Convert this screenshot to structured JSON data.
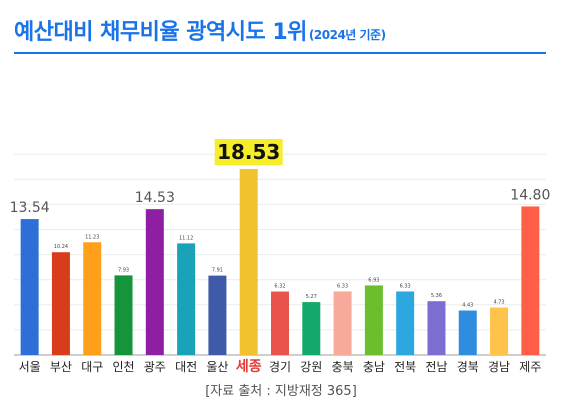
{
  "header": {
    "title": "예산대비 채무비율 광역시도 1위",
    "subtitle": "(2024년 기준)"
  },
  "source": "[자료 출처 : 지방재정 365]",
  "chart_data": {
    "type": "bar",
    "categories": [
      "서울",
      "부산",
      "대구",
      "인천",
      "광주",
      "대전",
      "울산",
      "세종",
      "경기",
      "강원",
      "충북",
      "충남",
      "전북",
      "전남",
      "경북",
      "경남",
      "제주"
    ],
    "values": [
      13.54,
      10.24,
      11.23,
      7.93,
      14.53,
      11.12,
      7.91,
      18.53,
      6.32,
      5.27,
      6.33,
      6.93,
      6.33,
      5.36,
      4.43,
      4.73,
      14.8
    ],
    "value_labels": [
      "13.54",
      "10.24",
      "11.23",
      "7.93",
      "14.53",
      "11.12",
      "7.91",
      "18.53",
      "6.32",
      "5.27",
      "6.33",
      "6.93",
      "6.33",
      "5.36",
      "4.43",
      "4.73",
      "14.80"
    ],
    "colors": [
      "#2d6fd6",
      "#d73d1b",
      "#ff9f1a",
      "#16943c",
      "#8e1fa3",
      "#1aa3b8",
      "#3e5aa8",
      "#f2c12e",
      "#e8534b",
      "#14a86a",
      "#f7a99a",
      "#6bbf2c",
      "#2ca7e0",
      "#7a6ed1",
      "#2f8de0",
      "#ffc24a",
      "#ff5f47"
    ],
    "highlight_label_bg": "#f6ee2a",
    "highlight_label_color": "#e53935",
    "large_labels": [
      0,
      4,
      7,
      16
    ],
    "xlabel": "",
    "ylabel": "",
    "ylim": [
      0,
      20
    ],
    "grid": true
  }
}
